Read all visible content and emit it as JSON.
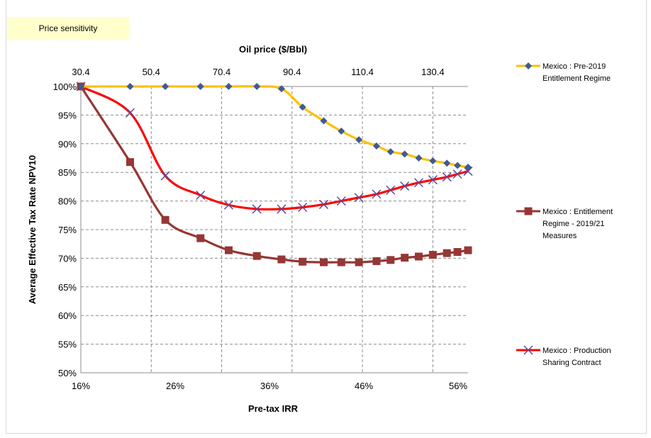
{
  "badge": "Price sensitivity",
  "chart_data": {
    "type": "line",
    "title": "",
    "xlabel": "Pre-tax IRR",
    "ylabel": "Average Effective Tax Rate NPV10",
    "x2label": "Oil price ($/Bbl)",
    "x_ticks": [
      "16%",
      "26%",
      "36%",
      "46%",
      "56%"
    ],
    "x2_ticks": [
      "30.4",
      "50.4",
      "70.4",
      "90.4",
      "110.4",
      "130.4"
    ],
    "y_ticks": [
      "100%",
      "95%",
      "90%",
      "85%",
      "80%",
      "75%",
      "70%",
      "65%",
      "60%",
      "55%",
      "50%"
    ],
    "ylim": [
      50,
      100
    ],
    "oil_price_lim": [
      30.4,
      140.4
    ],
    "grid": true,
    "legend_position": "right",
    "series": [
      {
        "name": "Mexico : Pre-2019 Entitlement Regime",
        "legend_lines": [
          "Mexico : Pre-2019",
          "Entitlement Regime"
        ],
        "color": "#ffc000",
        "marker": "diamond",
        "marker_color": "#3e5b94",
        "oil_price": [
          30.4,
          44.4,
          54.4,
          64.4,
          72.4,
          80.4,
          87.4,
          93.4,
          99.4,
          104.4,
          109.4,
          114.4,
          118.4,
          122.4,
          126.4,
          130.4,
          134.4,
          137.4,
          140.4
        ],
        "values": [
          100,
          100,
          100,
          100,
          100,
          100,
          99.6,
          96.4,
          94.0,
          92.2,
          90.7,
          89.6,
          88.6,
          88.2,
          87.5,
          87.0,
          86.6,
          86.2,
          85.9
        ]
      },
      {
        "name": "Mexico : Entitlement Regime - 2019/21 Measures",
        "legend_lines": [
          "Mexico : Entitlement",
          "Regime - 2019/21",
          "Measures"
        ],
        "color": "#953735",
        "marker": "square",
        "marker_color": "#953735",
        "oil_price": [
          30.4,
          44.4,
          54.4,
          64.4,
          72.4,
          80.4,
          87.4,
          93.4,
          99.4,
          104.4,
          109.4,
          114.4,
          118.4,
          122.4,
          126.4,
          130.4,
          134.4,
          137.4,
          140.4
        ],
        "values": [
          100,
          86.8,
          76.7,
          73.5,
          71.4,
          70.4,
          69.8,
          69.4,
          69.3,
          69.3,
          69.3,
          69.5,
          69.7,
          70.1,
          70.3,
          70.6,
          70.9,
          71.1,
          71.4
        ]
      },
      {
        "name": "Mexico : Production Sharing Contract",
        "legend_lines": [
          "Mexico : Production",
          "Sharing Contract"
        ],
        "color": "#ff0000",
        "marker": "x",
        "marker_color": "#5e4c9b",
        "oil_price": [
          30.4,
          44.4,
          54.4,
          64.4,
          72.4,
          80.4,
          87.4,
          93.4,
          99.4,
          104.4,
          109.4,
          114.4,
          118.4,
          122.4,
          126.4,
          130.4,
          134.4,
          137.4,
          140.4
        ],
        "values": [
          100,
          95.4,
          84.4,
          81.0,
          79.3,
          78.6,
          78.6,
          78.9,
          79.4,
          80.0,
          80.6,
          81.2,
          81.9,
          82.6,
          83.2,
          83.7,
          84.2,
          84.7,
          85.2
        ]
      }
    ]
  }
}
